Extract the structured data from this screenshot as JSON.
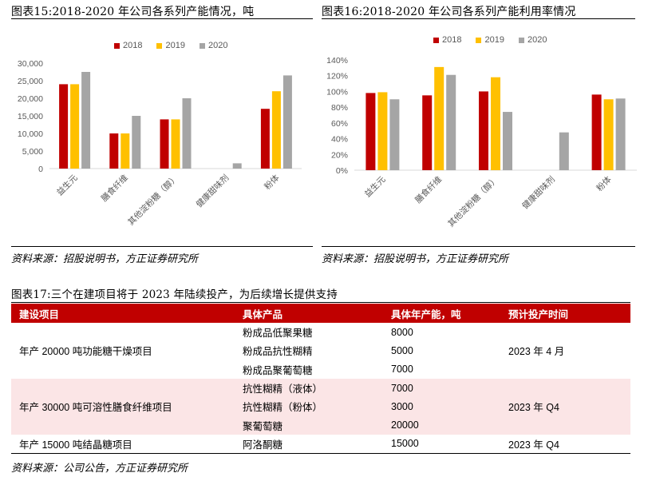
{
  "figure15": {
    "title": "图表15:2018-2020 年公司各系列产能情况，吨",
    "source": "资料来源：招股说明书，方正证券研究所"
  },
  "figure16": {
    "title": "图表16:2018-2020 年公司各系列产能利用率情况",
    "source": "资料来源：招股说明书，方正证券研究所"
  },
  "legend": [
    {
      "label": "2018",
      "color": "#c00000"
    },
    {
      "label": "2019",
      "color": "#ffc000"
    },
    {
      "label": "2020",
      "color": "#a5a5a5"
    }
  ],
  "chart_data": [
    {
      "type": "bar",
      "title": "2018-2020 年公司各系列产能情况，吨",
      "categories": [
        "益生元",
        "膳食纤维",
        "其他淀粉糖（醇）",
        "健康甜味剂",
        "粉体"
      ],
      "series": [
        {
          "name": "2018",
          "color": "#c00000",
          "values": [
            24000,
            10000,
            14000,
            0,
            17000
          ]
        },
        {
          "name": "2019",
          "color": "#ffc000",
          "values": [
            24000,
            10000,
            14000,
            0,
            22000
          ]
        },
        {
          "name": "2020",
          "color": "#a5a5a5",
          "values": [
            27500,
            15000,
            20000,
            1500,
            26500
          ]
        }
      ],
      "yticks": [
        "0",
        "5,000",
        "10,000",
        "15,000",
        "20,000",
        "25,000",
        "30,000"
      ],
      "ylim": [
        0,
        30000
      ],
      "xlabel": "",
      "ylabel": "",
      "grid": false,
      "legend_position": "top"
    },
    {
      "type": "bar",
      "title": "2018-2020 年公司各系列产能利用率情况",
      "categories": [
        "益生元",
        "膳食纤维",
        "其他淀粉糖（醇）",
        "健康甜味剂",
        "粉体"
      ],
      "series": [
        {
          "name": "2018",
          "color": "#c00000",
          "values": [
            0.98,
            0.95,
            1.0,
            0,
            0.96
          ]
        },
        {
          "name": "2019",
          "color": "#ffc000",
          "values": [
            0.99,
            1.31,
            1.18,
            0,
            0.9
          ]
        },
        {
          "name": "2020",
          "color": "#a5a5a5",
          "values": [
            0.9,
            1.21,
            0.74,
            0.48,
            0.91
          ]
        }
      ],
      "yticks": [
        "0%",
        "20%",
        "40%",
        "60%",
        "80%",
        "100%",
        "120%",
        "140%"
      ],
      "ylim": [
        0,
        1.4
      ],
      "xlabel": "",
      "ylabel": "",
      "grid": false,
      "legend_position": "top"
    }
  ],
  "figure17": {
    "title": "图表17:三个在建项目将于 2023 年陆续投产，为后续增长提供支持",
    "source": "资料来源：公司公告，方正证券研究所",
    "headers": [
      "建设项目",
      "具体产品",
      "具体年产能，吨",
      "预计投产时间"
    ],
    "rows": [
      {
        "project": "",
        "product": "粉成品低聚果糖",
        "capacity": "8000",
        "time": "",
        "pink": false
      },
      {
        "project": "年产 20000 吨功能糖干燥项目",
        "product": "粉成品抗性糊精",
        "capacity": "5000",
        "time": "2023 年 4 月",
        "pink": false
      },
      {
        "project": "",
        "product": "粉成品聚葡萄糖",
        "capacity": "7000",
        "time": "",
        "pink": false
      },
      {
        "project": "",
        "product": "抗性糊精（液体）",
        "capacity": "7000",
        "time": "",
        "pink": true
      },
      {
        "project": "年产 30000 吨可溶性膳食纤维项目",
        "product": "抗性糊精（粉体）",
        "capacity": "3000",
        "time": "2023 年 Q4",
        "pink": true
      },
      {
        "project": "",
        "product": "聚葡萄糖",
        "capacity": "20000",
        "time": "",
        "pink": true
      },
      {
        "project": "年产 15000 吨结晶糖项目",
        "product": "阿洛酮糖",
        "capacity": "15000",
        "time": "2023 年 Q4",
        "pink": false
      }
    ]
  }
}
